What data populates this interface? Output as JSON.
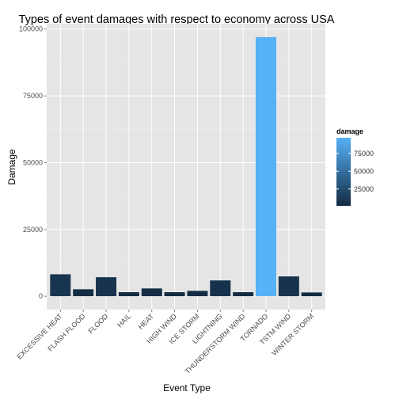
{
  "chart_data": {
    "type": "bar",
    "title": "Types of event damages with respect to economy across USA",
    "xlabel": "Event Type",
    "ylabel": "Damage",
    "categories": [
      "EXCESSIVE HEAT",
      "FLASH FLOOD",
      "FLOOD",
      "HAIL",
      "HEAT",
      "HIGH WIND",
      "ICE STORM",
      "LIGHTNING",
      "THUNDERSTORM WIND",
      "TORNADO",
      "TSTM WIND",
      "WINTER STORM"
    ],
    "values": [
      8200,
      2600,
      7100,
      1500,
      2900,
      1500,
      2000,
      5900,
      1500,
      97000,
      7400,
      1400
    ],
    "ylim": [
      -5000,
      102000
    ],
    "yticks": [
      0,
      25000,
      50000,
      75000,
      100000
    ],
    "ytick_labels": [
      "0",
      "25000",
      "50000",
      "75000",
      "100000"
    ],
    "grid": true,
    "fill_scale": {
      "low_color": "#132B43",
      "high_color": "#56B1F7"
    },
    "legend": {
      "title": "damage",
      "position": "right",
      "ticks": [
        25000,
        50000,
        75000
      ],
      "labels": [
        "25000",
        "50000",
        "75000"
      ]
    }
  }
}
